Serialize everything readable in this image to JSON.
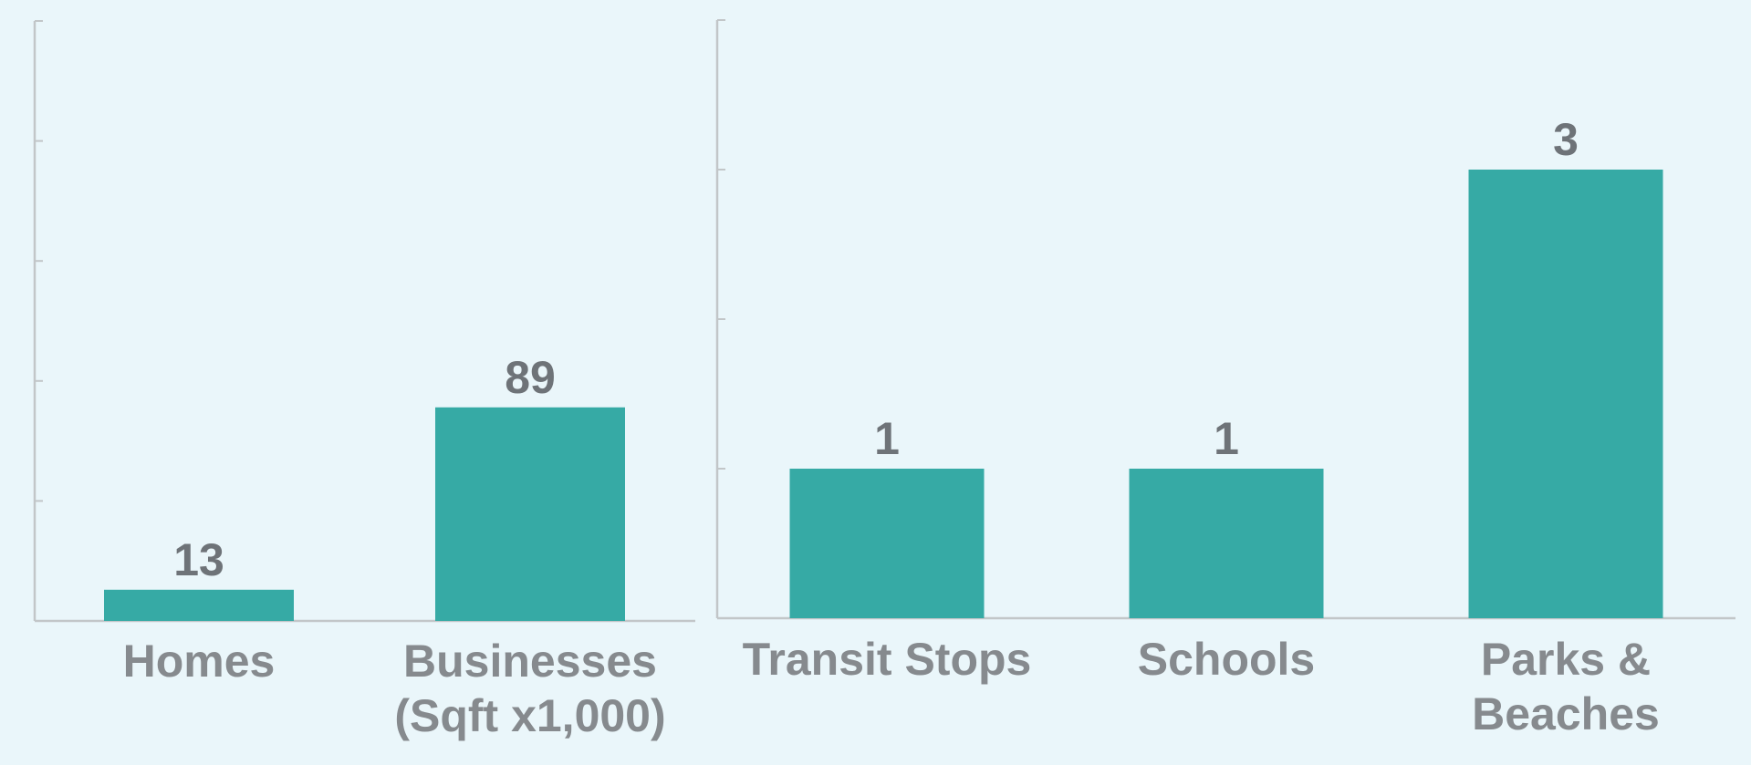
{
  "chart_data": [
    {
      "type": "bar",
      "categories": [
        [
          "Homes"
        ],
        [
          "Businesses",
          "(Sqft x1,000)"
        ]
      ],
      "values": [
        13,
        89
      ],
      "ylim": [
        0,
        250
      ],
      "grid": false,
      "bar_color": "#36AAA5",
      "axis_color": "#C2C6C8"
    },
    {
      "type": "bar",
      "categories": [
        [
          "Transit Stops"
        ],
        [
          "Schools"
        ],
        [
          "Parks &",
          "Beaches"
        ]
      ],
      "values": [
        1,
        1,
        3
      ],
      "ylim": [
        0,
        4
      ],
      "grid": false,
      "bar_color": "#36AAA5",
      "axis_color": "#C2C6C8"
    }
  ]
}
